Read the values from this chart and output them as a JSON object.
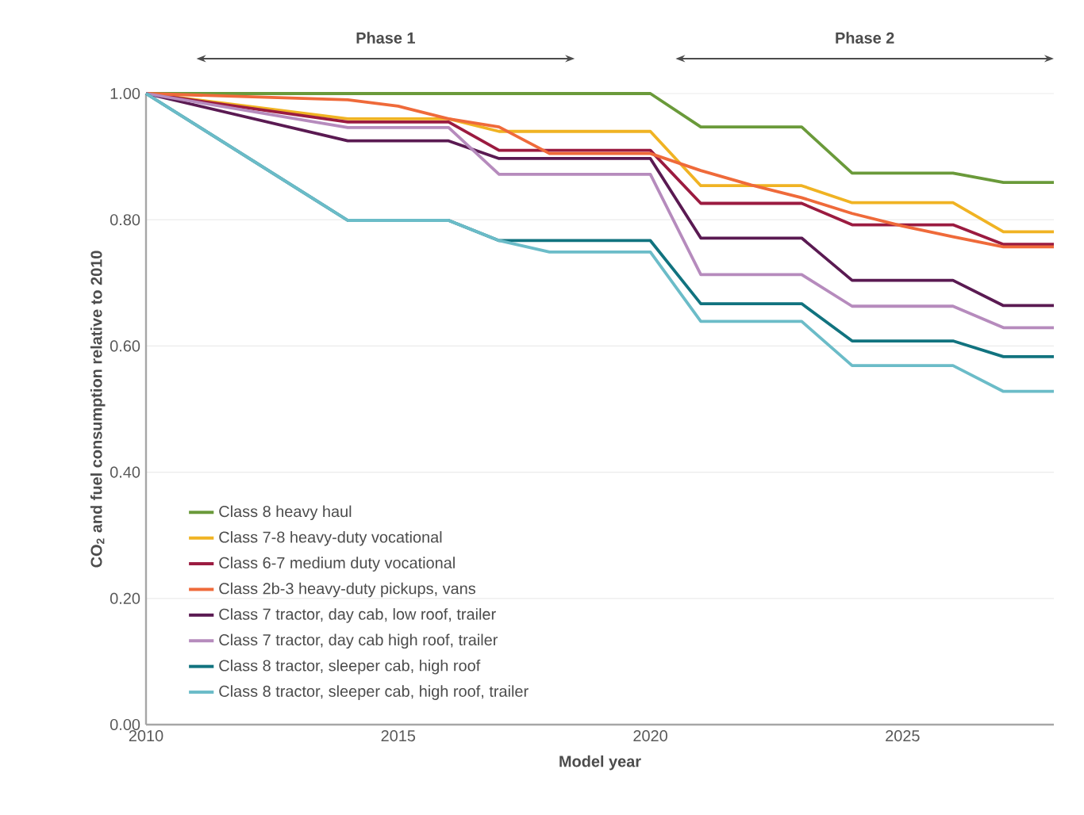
{
  "chart_data": {
    "type": "line",
    "xlabel": "Model year",
    "ylabel": "CO$_{2}$ and fuel consumption relative to 2010",
    "xlim": [
      2010,
      2028
    ],
    "xticks": [
      2010,
      2015,
      2020,
      2025
    ],
    "ylim": [
      0,
      1
    ],
    "yticks": [
      {
        "value": 0,
        "label": "0.00"
      },
      {
        "value": 0.2,
        "label": "0.20"
      },
      {
        "value": 0.4,
        "label": "0.40"
      },
      {
        "value": 0.6,
        "label": "0.60"
      },
      {
        "value": 0.8,
        "label": "0.80"
      },
      {
        "value": 1,
        "label": "1.00"
      }
    ],
    "grid": "y",
    "legend": "bottom left",
    "marker": "none",
    "line_style": "solid",
    "annotations": [
      "Phase 1",
      "Phase 2"
    ],
    "series": [
      {
        "name": "Class 8 heavy haul",
        "color": "#6a9a3a",
        "x": [
          2010,
          2020,
          2021,
          2023,
          2024,
          2026,
          2027,
          2028
        ],
        "values": [
          1,
          1,
          0.947,
          0.947,
          0.874,
          0.874,
          0.859,
          0.859
        ]
      },
      {
        "name": "Class 7-8 heavy-duty vocational",
        "color": "#f0b323",
        "x": [
          2010,
          2014,
          2016,
          2017,
          2020,
          2021,
          2023,
          2024,
          2026,
          2027,
          2028
        ],
        "values": [
          1,
          0.96,
          0.96,
          0.94,
          0.94,
          0.854,
          0.854,
          0.827,
          0.827,
          0.781,
          0.781
        ]
      },
      {
        "name": "Class 6-7 medium duty vocational",
        "color": "#9b1b40",
        "x": [
          2010,
          2014,
          2016,
          2017,
          2020,
          2021,
          2023,
          2024,
          2026,
          2027,
          2028
        ],
        "values": [
          1,
          0.955,
          0.955,
          0.91,
          0.91,
          0.826,
          0.826,
          0.792,
          0.792,
          0.761,
          0.761
        ]
      },
      {
        "name": "Class 2b-3 heavy-duty pickups, vans",
        "color": "#ef6a3a",
        "x": [
          2010,
          2014,
          2015,
          2016,
          2017,
          2018,
          2020,
          2021,
          2022,
          2023,
          2024,
          2025,
          2026,
          2027,
          2028
        ],
        "values": [
          1,
          0.99,
          0.98,
          0.96,
          0.947,
          0.905,
          0.905,
          0.878,
          0.855,
          0.835,
          0.81,
          0.79,
          0.773,
          0.757,
          0.757
        ]
      },
      {
        "name": "Class 7 tractor, day cab, low roof, trailer",
        "color": "#5a1a52",
        "x": [
          2010,
          2014,
          2016,
          2017,
          2020,
          2021,
          2023,
          2024,
          2026,
          2027,
          2028
        ],
        "values": [
          1,
          0.925,
          0.925,
          0.897,
          0.897,
          0.771,
          0.771,
          0.704,
          0.704,
          0.664,
          0.664
        ]
      },
      {
        "name": "Class 7 tractor, day cab high roof, trailer",
        "color": "#b68bbd",
        "x": [
          2010,
          2014,
          2016,
          2017,
          2020,
          2021,
          2023,
          2024,
          2026,
          2027,
          2028
        ],
        "values": [
          1,
          0.946,
          0.946,
          0.872,
          0.872,
          0.713,
          0.713,
          0.663,
          0.663,
          0.629,
          0.629
        ]
      },
      {
        "name": "Class 8 tractor, sleeper cab, high roof",
        "color": "#11737f",
        "x": [
          2010,
          2014,
          2016,
          2017,
          2020,
          2021,
          2023,
          2024,
          2026,
          2027,
          2028
        ],
        "values": [
          1,
          0.799,
          0.799,
          0.767,
          0.767,
          0.667,
          0.667,
          0.608,
          0.608,
          0.583,
          0.583
        ]
      },
      {
        "name": "Class 8 tractor, sleeper cab, high roof, trailer",
        "color": "#6bbcc8",
        "x": [
          2010,
          2014,
          2016,
          2017,
          2018,
          2020,
          2021,
          2023,
          2024,
          2026,
          2027,
          2028
        ],
        "values": [
          1,
          0.799,
          0.799,
          0.767,
          0.749,
          0.749,
          0.639,
          0.639,
          0.569,
          0.569,
          0.528,
          0.528
        ]
      }
    ]
  }
}
